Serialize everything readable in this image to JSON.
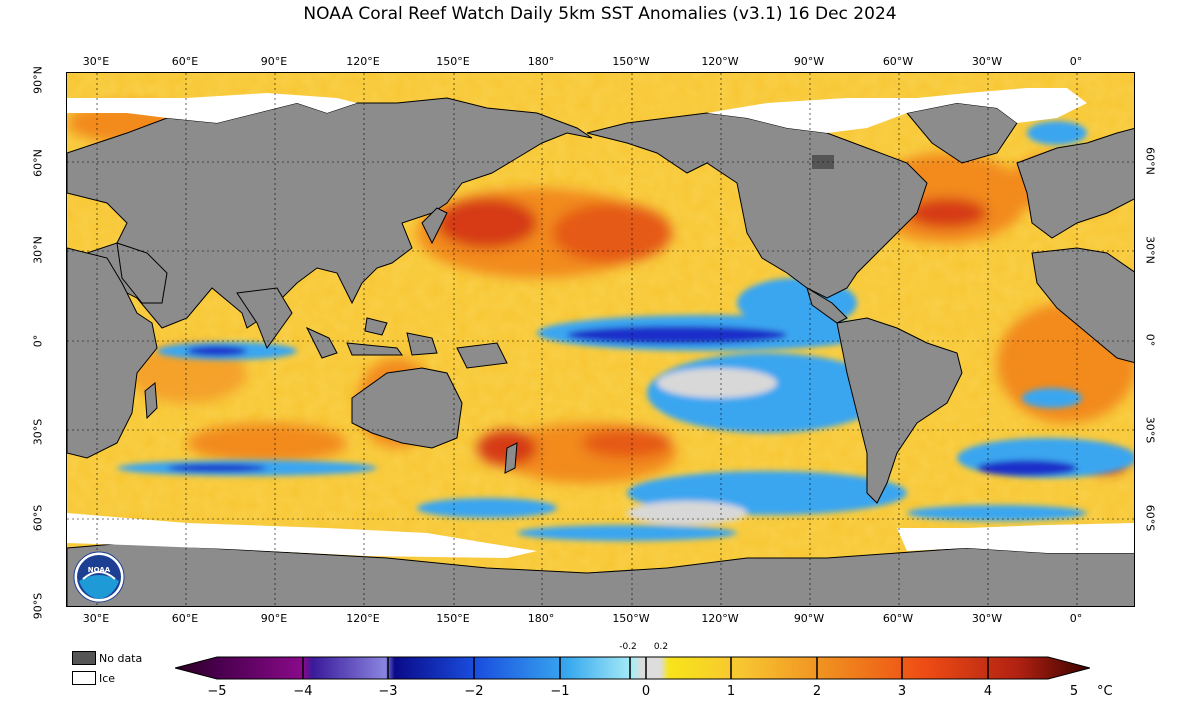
{
  "title": "NOAA Coral Reef Watch Daily 5km SST Anomalies  (v3.1)   16 Dec 2024",
  "lon_ticks": [
    "30°E",
    "60°E",
    "90°E",
    "120°E",
    "150°E",
    "180°",
    "150°W",
    "120°W",
    "90°W",
    "60°W",
    "30°W",
    "0°"
  ],
  "lat_ticks_left": [
    "90°N",
    "60°N",
    "30°N",
    "0°",
    "30°S",
    "60°S",
    "90°S"
  ],
  "lat_ticks_right": [
    "60°N",
    "30°N",
    "0°",
    "30°S",
    "60°S"
  ],
  "legend": {
    "no_data": "No data",
    "ice": "Ice"
  },
  "colorbar": {
    "labels": [
      "−5",
      "−4",
      "−3",
      "−2",
      "−1",
      "0",
      "1",
      "2",
      "3",
      "4",
      "5"
    ],
    "small_labels": [
      "-0.2",
      "0.2"
    ],
    "unit": "°C"
  },
  "logo": {
    "text": "NOAA"
  },
  "colors": {
    "land": "#8c8c8c",
    "no_data": "#555555",
    "ice": "#ffffff",
    "cold_strong": "#1a2fc9",
    "cold": "#3aa6f0",
    "neutral": "#dddddd",
    "warm": "#f7c531",
    "warm_strong": "#f07a1a",
    "hot": "#c82814"
  }
}
